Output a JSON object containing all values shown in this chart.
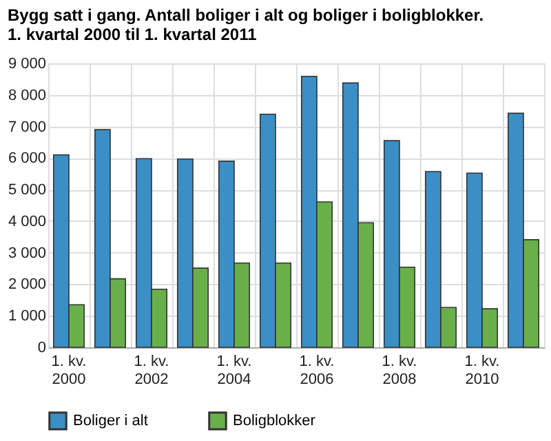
{
  "chart_data": {
    "type": "bar",
    "title": "Bygg satt i gang. Antall boliger i alt og boliger i boligblokker.",
    "subtitle": "1. kvartal 2000 til 1. kvartal 2011",
    "categories": [
      "1. kv.\n2000",
      null,
      "1. kv.\n2002",
      null,
      "1. kv.\n2004",
      null,
      "1. kv.\n2006",
      null,
      "1. kv.\n2008",
      null,
      "1. kv.\n2010",
      null
    ],
    "series": [
      {
        "name": "Boliger i alt",
        "color": "#3a8fc6",
        "values": [
          6100,
          6900,
          5980,
          5970,
          5900,
          7390,
          8590,
          8380,
          6550,
          5570,
          5520,
          7420
        ]
      },
      {
        "name": "Boligblokker",
        "color": "#6ab04a",
        "values": [
          1350,
          2170,
          1840,
          2510,
          2670,
          2670,
          4610,
          3950,
          2540,
          1260,
          1220,
          3410
        ]
      }
    ],
    "ylim": [
      0,
      9000
    ],
    "yticks": [
      0,
      1000,
      2000,
      3000,
      4000,
      5000,
      6000,
      7000,
      8000,
      9000
    ],
    "grid": true,
    "legend": "bottom"
  }
}
